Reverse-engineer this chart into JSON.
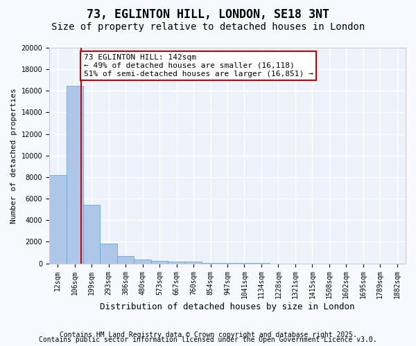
{
  "title1": "73, EGLINTON HILL, LONDON, SE18 3NT",
  "title2": "Size of property relative to detached houses in London",
  "xlabel": "Distribution of detached houses by size in London",
  "ylabel": "Number of detached properties",
  "bar_color": "#aec6e8",
  "bar_edge_color": "#5a9fd4",
  "background_color": "#eef2fa",
  "grid_color": "#ffffff",
  "bin_labels": [
    "12sqm",
    "106sqm",
    "199sqm",
    "293sqm",
    "386sqm",
    "480sqm",
    "573sqm",
    "667sqm",
    "760sqm",
    "854sqm",
    "947sqm",
    "1041sqm",
    "1134sqm",
    "1228sqm",
    "1321sqm",
    "1415sqm",
    "1508sqm",
    "1602sqm",
    "1695sqm",
    "1789sqm",
    "1882sqm"
  ],
  "bar_heights": [
    8200,
    16500,
    5400,
    1850,
    700,
    350,
    250,
    175,
    150,
    50,
    30,
    20,
    10,
    5,
    0,
    0,
    0,
    0,
    0,
    0,
    0
  ],
  "red_line_x": 1.38,
  "red_line_color": "#cc0000",
  "annotation_text": "73 EGLINTON HILL: 142sqm\n← 49% of detached houses are smaller (16,118)\n51% of semi-detached houses are larger (16,851) →",
  "annotation_box_color": "#ffffff",
  "annotation_box_edge_color": "#cc0000",
  "ylim": [
    0,
    20000
  ],
  "yticks": [
    0,
    2000,
    4000,
    6000,
    8000,
    10000,
    12000,
    14000,
    16000,
    18000,
    20000
  ],
  "footer1": "Contains HM Land Registry data © Crown copyright and database right 2025.",
  "footer2": "Contains public sector information licensed under the Open Government Licence v3.0.",
  "title1_fontsize": 12,
  "title2_fontsize": 10,
  "annotation_fontsize": 8,
  "tick_fontsize": 7,
  "xlabel_fontsize": 9,
  "ylabel_fontsize": 8,
  "footer_fontsize": 7
}
